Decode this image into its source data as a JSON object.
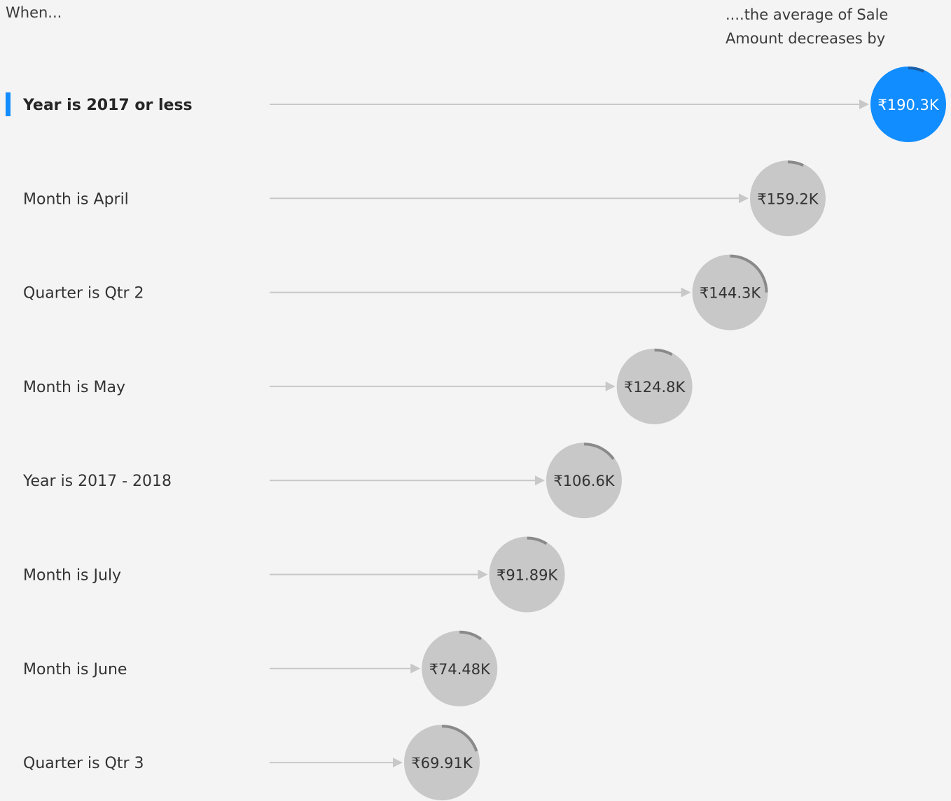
{
  "header": {
    "when_label": "When...",
    "result_label": "....the average of Sale Amount decreases by"
  },
  "colors": {
    "selected": "#118dff",
    "bubble": "#c8c8c8",
    "arc": "#8a8a8a",
    "arc_selected": "#1a5fa8",
    "connector": "#c8c8c8",
    "background": "#f4f4f4"
  },
  "chart_data": {
    "type": "key-influencers",
    "measure": "average of Sale Amount",
    "direction": "decreases",
    "selected_index": 0,
    "items": [
      {
        "label": "Year is 2017 or less",
        "value": 190.3,
        "display": "₹190.3K",
        "arc": 0.07
      },
      {
        "label": "Month is April",
        "value": 159.2,
        "display": "₹159.2K",
        "arc": 0.07
      },
      {
        "label": "Quarter is Qtr 2",
        "value": 144.3,
        "display": "₹144.3K",
        "arc": 0.25
      },
      {
        "label": "Month is May",
        "value": 124.8,
        "display": "₹124.8K",
        "arc": 0.08
      },
      {
        "label": "Year is 2017 - 2018",
        "value": 106.6,
        "display": "₹106.6K",
        "arc": 0.15
      },
      {
        "label": "Month is July",
        "value": 91.89,
        "display": "₹91.89K",
        "arc": 0.09
      },
      {
        "label": "Month is June",
        "value": 74.48,
        "display": "₹74.48K",
        "arc": 0.1
      },
      {
        "label": "Quarter is Qtr 3",
        "value": 69.91,
        "display": "₹69.91K",
        "arc": 0.2
      }
    ]
  }
}
